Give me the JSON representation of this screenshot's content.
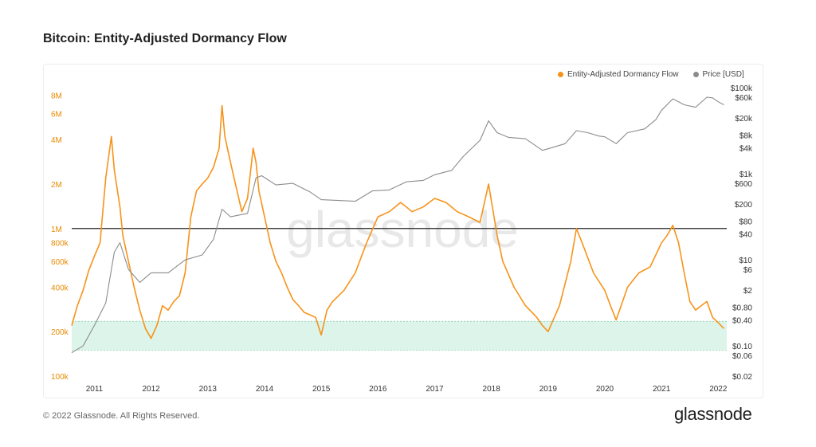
{
  "header": {
    "title": "Bitcoin: Entity-Adjusted Dormancy Flow"
  },
  "footer": {
    "copyright": "© 2022 Glassnode. All Rights Reserved.",
    "brand": "glassnode"
  },
  "watermark": "glassnode",
  "colors": {
    "flow": "#f7931a",
    "price": "#8c8c8c",
    "band": "#d6f2e6",
    "refline": "#222222"
  },
  "chart_data": {
    "type": "line",
    "title": "Bitcoin: Entity-Adjusted Dormancy Flow",
    "legend": {
      "placement": "top-right",
      "entries": [
        "Entity-Adjusted Dormancy Flow",
        "Price [USD]"
      ]
    },
    "x_ticks": [
      "2011",
      "2012",
      "2013",
      "2014",
      "2015",
      "2016",
      "2017",
      "2018",
      "2019",
      "2020",
      "2021",
      "2022"
    ],
    "left_axis": {
      "scale": "log",
      "ylim": [
        100000,
        9000000
      ],
      "ticks": [
        {
          "v": 100000,
          "label": "100k"
        },
        {
          "v": 200000,
          "label": "200k"
        },
        {
          "v": 400000,
          "label": "400k"
        },
        {
          "v": 600000,
          "label": "600k"
        },
        {
          "v": 800000,
          "label": "800k"
        },
        {
          "v": 1000000,
          "label": "1M"
        },
        {
          "v": 2000000,
          "label": "2M"
        },
        {
          "v": 4000000,
          "label": "4M"
        },
        {
          "v": 6000000,
          "label": "6M"
        },
        {
          "v": 8000000,
          "label": "8M"
        }
      ]
    },
    "right_axis": {
      "scale": "log",
      "ylim": [
        0.02,
        100000
      ],
      "ticks": [
        {
          "v": 0.02,
          "label": "$0.02"
        },
        {
          "v": 0.06,
          "label": "$0.06"
        },
        {
          "v": 0.1,
          "label": "$0.10"
        },
        {
          "v": 0.4,
          "label": "$0.40"
        },
        {
          "v": 0.8,
          "label": "$0.80"
        },
        {
          "v": 2,
          "label": "$2"
        },
        {
          "v": 6,
          "label": "$6"
        },
        {
          "v": 10,
          "label": "$10"
        },
        {
          "v": 40,
          "label": "$40"
        },
        {
          "v": 80,
          "label": "$80"
        },
        {
          "v": 200,
          "label": "$200"
        },
        {
          "v": 600,
          "label": "$600"
        },
        {
          "v": 1000,
          "label": "$1k"
        },
        {
          "v": 4000,
          "label": "$4k"
        },
        {
          "v": 8000,
          "label": "$8k"
        },
        {
          "v": 20000,
          "label": "$20k"
        },
        {
          "v": 60000,
          "label": "$60k"
        },
        {
          "v": 100000,
          "label": "$100k"
        }
      ]
    },
    "reference_line": {
      "value": 1000000,
      "axis": "left"
    },
    "band": {
      "from": 150000,
      "to": 235000,
      "axis": "left"
    },
    "series": [
      {
        "name": "Entity-Adjusted Dormancy Flow",
        "axis": "left",
        "x": [
          2010.6,
          2010.7,
          2010.8,
          2010.9,
          2011.0,
          2011.1,
          2011.2,
          2011.3,
          2011.35,
          2011.45,
          2011.5,
          2011.6,
          2011.7,
          2011.8,
          2011.9,
          2012.0,
          2012.1,
          2012.2,
          2012.3,
          2012.4,
          2012.5,
          2012.6,
          2012.7,
          2012.8,
          2012.9,
          2013.0,
          2013.1,
          2013.2,
          2013.25,
          2013.3,
          2013.4,
          2013.5,
          2013.6,
          2013.7,
          2013.8,
          2013.85,
          2013.9,
          2014.0,
          2014.1,
          2014.2,
          2014.3,
          2014.4,
          2014.5,
          2014.6,
          2014.7,
          2014.8,
          2014.9,
          2015.0,
          2015.1,
          2015.2,
          2015.4,
          2015.6,
          2015.8,
          2016.0,
          2016.2,
          2016.4,
          2016.5,
          2016.6,
          2016.8,
          2017.0,
          2017.2,
          2017.4,
          2017.6,
          2017.8,
          2017.95,
          2018.1,
          2018.2,
          2018.4,
          2018.6,
          2018.8,
          2018.9,
          2019.0,
          2019.2,
          2019.4,
          2019.5,
          2019.6,
          2019.8,
          2020.0,
          2020.1,
          2020.2,
          2020.4,
          2020.6,
          2020.8,
          2021.0,
          2021.1,
          2021.2,
          2021.3,
          2021.4,
          2021.5,
          2021.6,
          2021.7,
          2021.8,
          2021.9,
          2022.0,
          2022.1
        ],
        "values": [
          220000,
          300000,
          380000,
          520000,
          650000,
          800000,
          2200000,
          4200000,
          2500000,
          1400000,
          900000,
          600000,
          400000,
          280000,
          210000,
          180000,
          220000,
          300000,
          280000,
          320000,
          350000,
          500000,
          1200000,
          1800000,
          2000000,
          2200000,
          2600000,
          3500000,
          6800000,
          4200000,
          2800000,
          1900000,
          1300000,
          1600000,
          3500000,
          2800000,
          1800000,
          1200000,
          800000,
          600000,
          500000,
          400000,
          330000,
          300000,
          270000,
          260000,
          250000,
          190000,
          280000,
          320000,
          380000,
          500000,
          800000,
          1200000,
          1300000,
          1500000,
          1400000,
          1300000,
          1400000,
          1600000,
          1500000,
          1300000,
          1200000,
          1100000,
          2000000,
          900000,
          600000,
          400000,
          300000,
          250000,
          220000,
          200000,
          300000,
          600000,
          1000000,
          800000,
          500000,
          380000,
          300000,
          240000,
          400000,
          500000,
          550000,
          800000,
          900000,
          1050000,
          800000,
          500000,
          320000,
          280000,
          300000,
          320000,
          250000,
          230000,
          210000
        ]
      },
      {
        "name": "Price [USD]",
        "axis": "right",
        "x": [
          2010.6,
          2010.8,
          2011.0,
          2011.2,
          2011.35,
          2011.45,
          2011.6,
          2011.8,
          2012.0,
          2012.3,
          2012.6,
          2012.9,
          2013.1,
          2013.25,
          2013.4,
          2013.7,
          2013.85,
          2013.95,
          2014.2,
          2014.5,
          2014.8,
          2015.0,
          2015.3,
          2015.6,
          2015.9,
          2016.2,
          2016.5,
          2016.8,
          2017.0,
          2017.3,
          2017.5,
          2017.8,
          2017.95,
          2018.1,
          2018.3,
          2018.6,
          2018.9,
          2019.0,
          2019.3,
          2019.5,
          2019.7,
          2019.9,
          2020.0,
          2020.2,
          2020.4,
          2020.7,
          2020.9,
          2021.0,
          2021.2,
          2021.4,
          2021.6,
          2021.8,
          2021.9,
          2022.0,
          2022.1
        ],
        "values": [
          0.07,
          0.1,
          0.3,
          1,
          15,
          25,
          6,
          3,
          5,
          5,
          10,
          13,
          30,
          150,
          100,
          120,
          800,
          900,
          550,
          600,
          380,
          250,
          240,
          230,
          400,
          420,
          650,
          700,
          950,
          1200,
          2500,
          6000,
          17000,
          9000,
          7000,
          6500,
          3500,
          3800,
          5000,
          10000,
          9000,
          7500,
          7200,
          5000,
          9000,
          11000,
          18000,
          30000,
          55000,
          40000,
          35000,
          60000,
          58000,
          47000,
          40000
        ]
      }
    ]
  }
}
